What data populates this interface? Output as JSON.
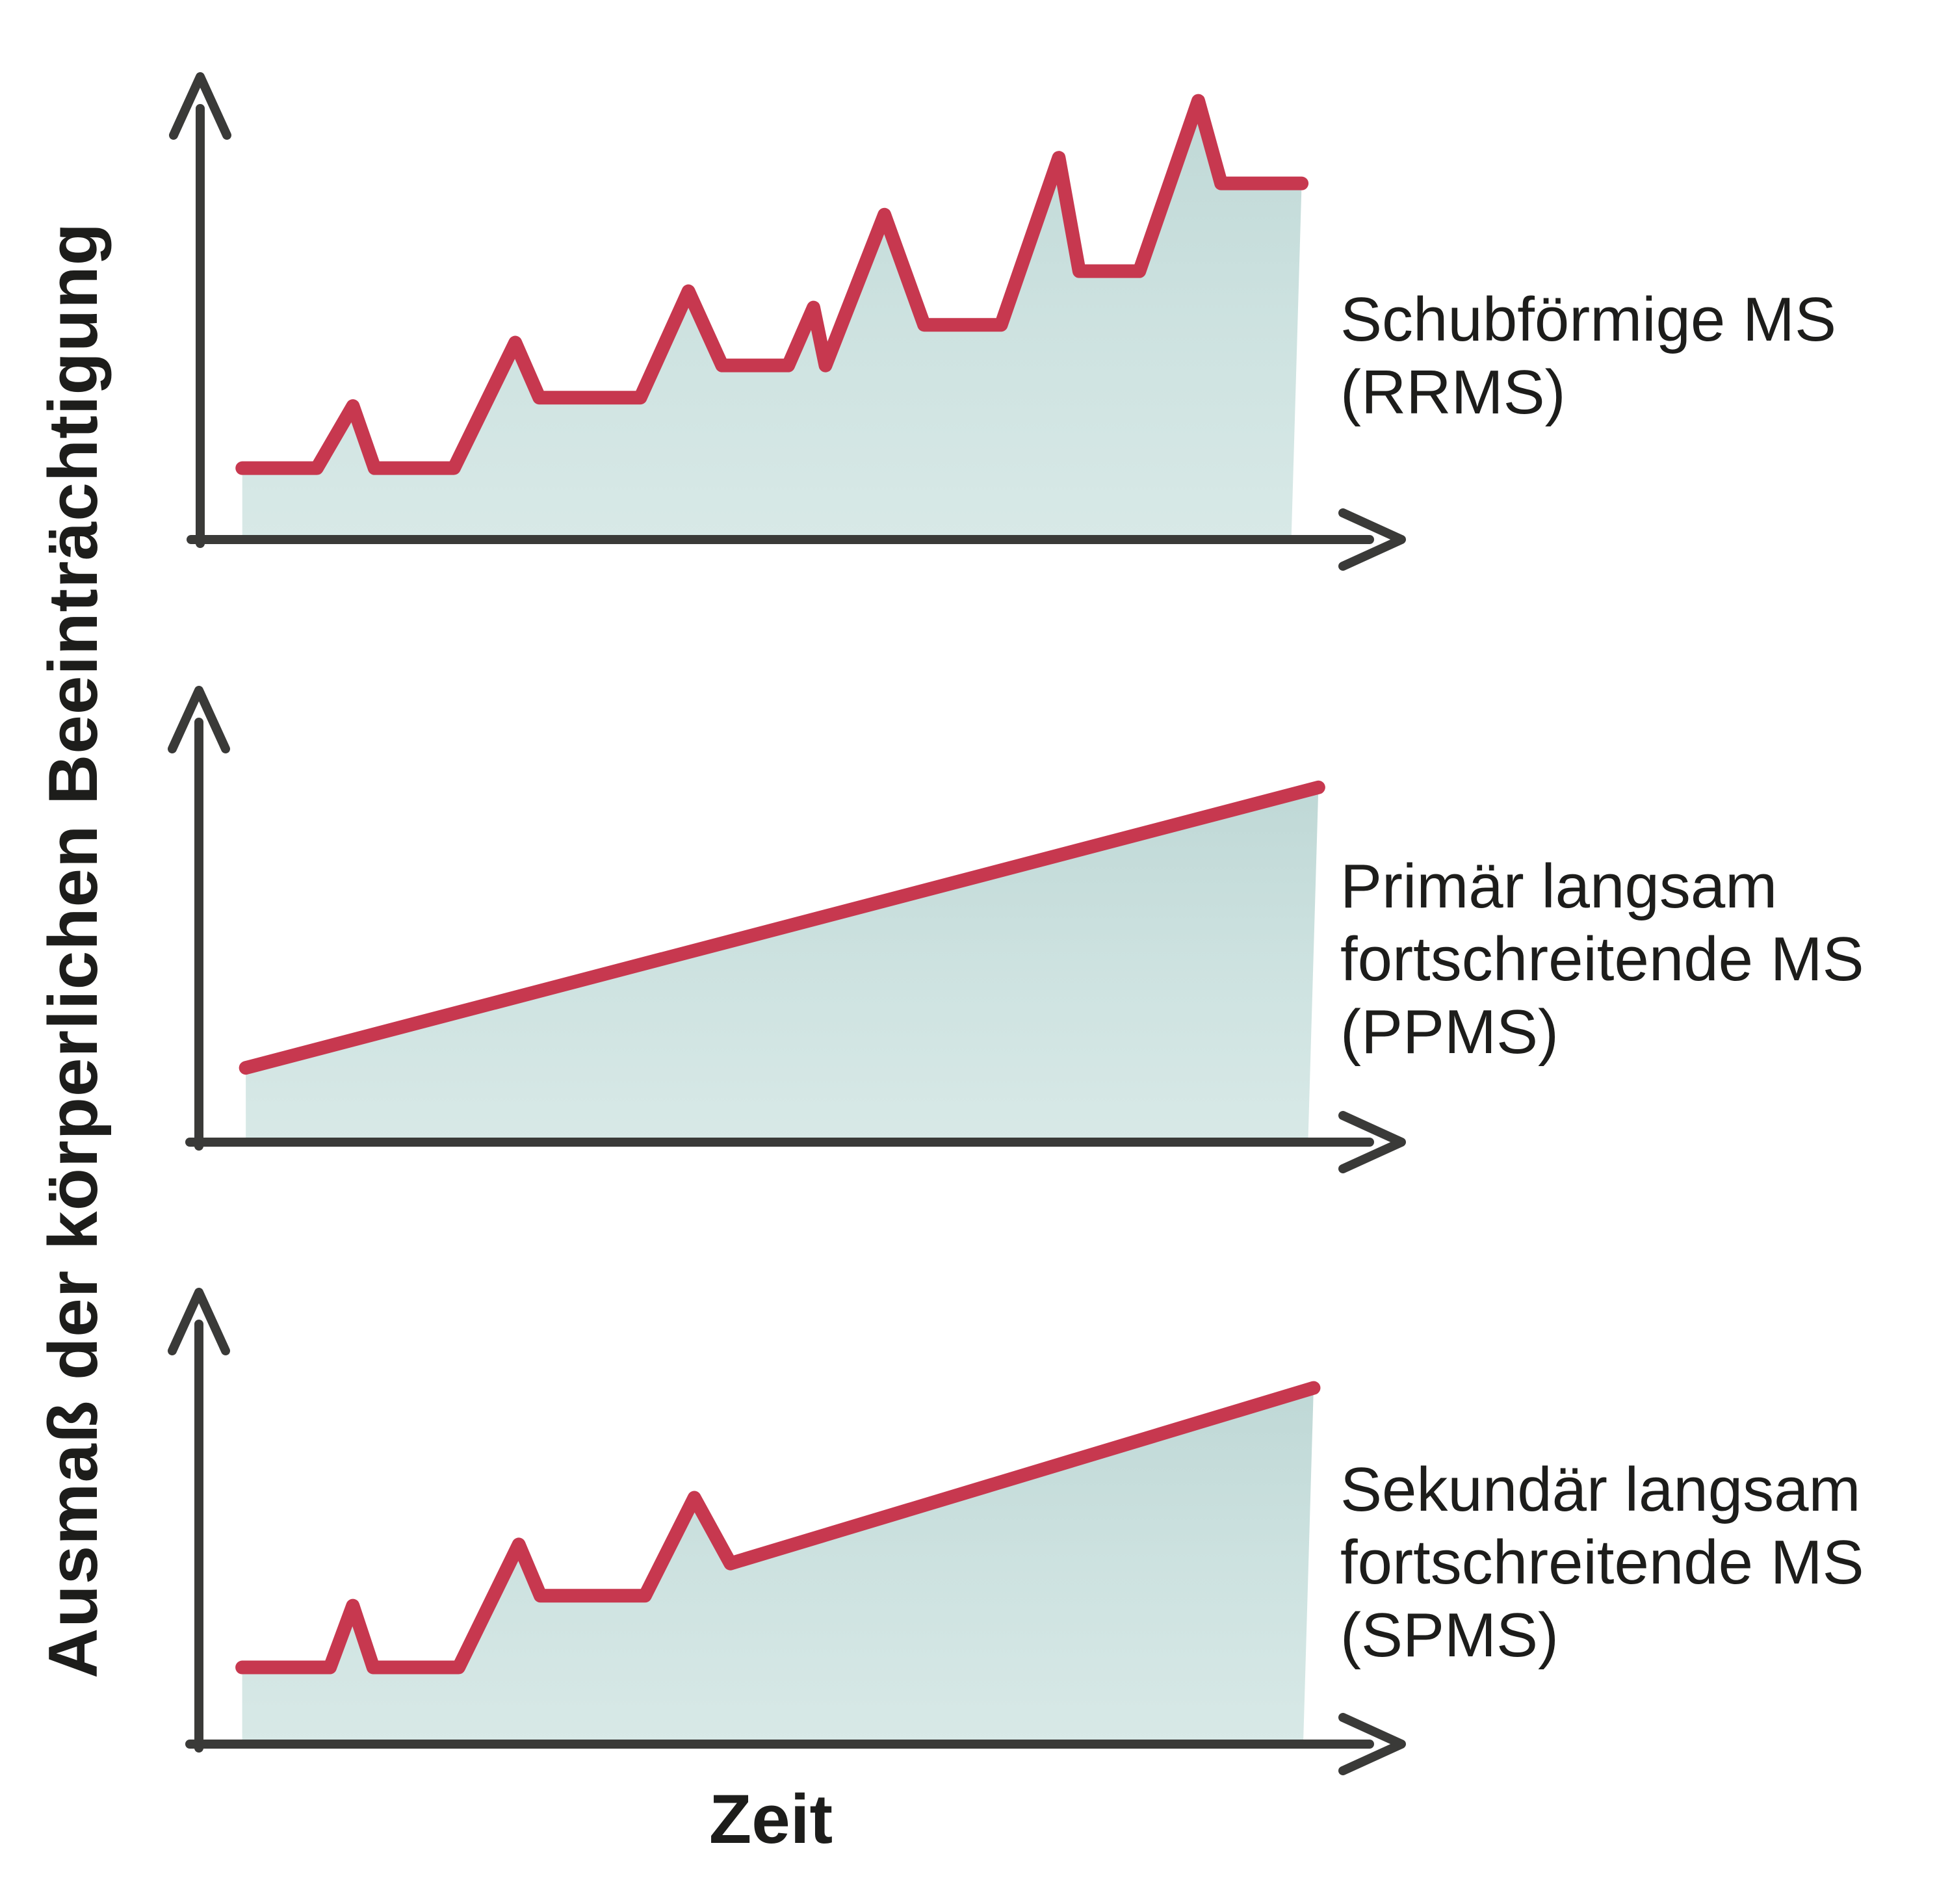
{
  "figure": {
    "y_axis_label": "Ausmaß der körperlichen Beeinträchtigung",
    "x_axis_label": "Zeit"
  },
  "colors": {
    "background": "#ffffff",
    "line": "#c7384f",
    "area_top": "#bfd8d6",
    "area_mid": "#cde2e0",
    "area_bottom": "#d8e9e7",
    "axis": "#3a3a38",
    "text": "#1d1d1b"
  },
  "chart_data": [
    {
      "type": "area",
      "id": "rrms",
      "title": "Schubförmige MS (RRMS)",
      "label_lines": [
        "Schubförmige MS",
        "(RRMS)"
      ],
      "xlabel": "Zeit",
      "ylabel": "Ausmaß der körperlichen Beeinträchtigung",
      "x_range": [
        0,
        100
      ],
      "y_range": [
        0,
        100
      ],
      "grid": false,
      "legend": false,
      "points": [
        [
          3.5,
          15.3
        ],
        [
          9.7,
          15.3
        ],
        [
          12.7,
          28.6
        ],
        [
          14.5,
          15.3
        ],
        [
          21.1,
          15.3
        ],
        [
          26.2,
          42.2
        ],
        [
          28.2,
          30.4
        ],
        [
          36.6,
          30.4
        ],
        [
          40.6,
          53.2
        ],
        [
          43.4,
          37.3
        ],
        [
          48.9,
          37.3
        ],
        [
          51.0,
          49.7
        ],
        [
          52.0,
          37.3
        ],
        [
          56.9,
          69.6
        ],
        [
          60.2,
          46.0
        ],
        [
          66.6,
          46.0
        ],
        [
          71.4,
          81.8
        ],
        [
          73.1,
          57.5
        ],
        [
          78.1,
          57.5
        ],
        [
          83.0,
          94.0
        ],
        [
          84.9,
          76.3
        ],
        [
          91.6,
          76.3
        ]
      ]
    },
    {
      "type": "area",
      "id": "ppms",
      "title": "Primär langsam fortschreitende MS (PPMS)",
      "label_lines": [
        "Primär langsam",
        "fortschreitende MS",
        "(PPMS)"
      ],
      "xlabel": "Zeit",
      "ylabel": "Ausmaß der körperlichen Beeinträchtigung",
      "x_range": [
        0,
        100
      ],
      "y_range": [
        0,
        100
      ],
      "grid": false,
      "legend": false,
      "points": [
        [
          3.9,
          16.4
        ],
        [
          93.1,
          78.3
        ]
      ]
    },
    {
      "type": "area",
      "id": "spms",
      "title": "Sekundär langsam fortschreitende MS (SPMS)",
      "label_lines": [
        "Sekundär langsam",
        "fortschreitende MS",
        "(SPMS)"
      ],
      "xlabel": "Zeit",
      "ylabel": "Ausmaß der körperlichen Beeinträchtigung",
      "x_range": [
        0,
        100
      ],
      "y_range": [
        0,
        100
      ],
      "grid": false,
      "legend": false,
      "points": [
        [
          3.6,
          16.9
        ],
        [
          10.9,
          16.9
        ],
        [
          12.8,
          30.5
        ],
        [
          14.5,
          16.9
        ],
        [
          21.6,
          16.9
        ],
        [
          26.6,
          44.0
        ],
        [
          28.4,
          32.7
        ],
        [
          37.1,
          32.7
        ],
        [
          41.2,
          54.3
        ],
        [
          44.2,
          39.8
        ],
        [
          92.7,
          78.5
        ]
      ]
    }
  ]
}
